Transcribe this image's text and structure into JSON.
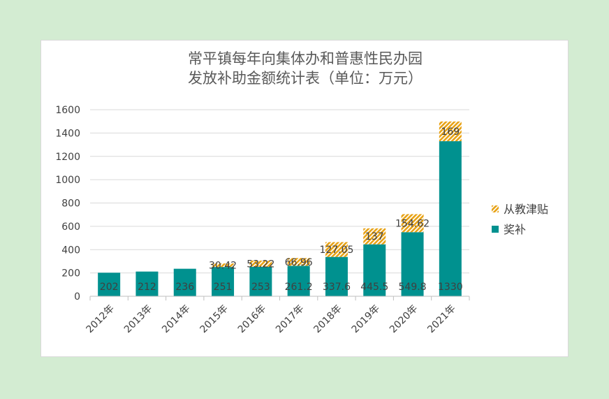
{
  "chart_data": {
    "type": "bar",
    "stacked": true,
    "title_lines": [
      "常平镇每年向集体办和普惠性民办园",
      "发放补助金额统计表（单位：万元）"
    ],
    "categories": [
      "2012年",
      "2013年",
      "2014年",
      "2015年",
      "2016年",
      "2017年",
      "2018年",
      "2019年",
      "2020年",
      "2021年"
    ],
    "series": [
      {
        "name": "奖补",
        "color": "#00918f",
        "values": [
          202,
          212,
          236,
          251,
          253,
          261.2,
          337.6,
          445.5,
          549.8,
          1330
        ],
        "labels": [
          "202",
          "212",
          "236",
          "251",
          "253",
          "261.2",
          "337.6",
          "445.5",
          "549.8",
          "1330"
        ]
      },
      {
        "name": "从教津贴",
        "color": "#e8a317",
        "pattern": "hatched",
        "values": [
          null,
          null,
          null,
          30.42,
          53.22,
          66.96,
          127.05,
          137,
          154.62,
          169
        ],
        "labels": [
          "",
          "",
          "",
          "30.42",
          "53.22",
          "66.96",
          "127.05",
          "137",
          "154.62",
          "169"
        ]
      }
    ],
    "ylim": [
      0,
      1600
    ],
    "yticks": [
      0,
      200,
      400,
      600,
      800,
      1000,
      1200,
      1400,
      1600
    ],
    "legend_position": "right",
    "grid": true
  }
}
